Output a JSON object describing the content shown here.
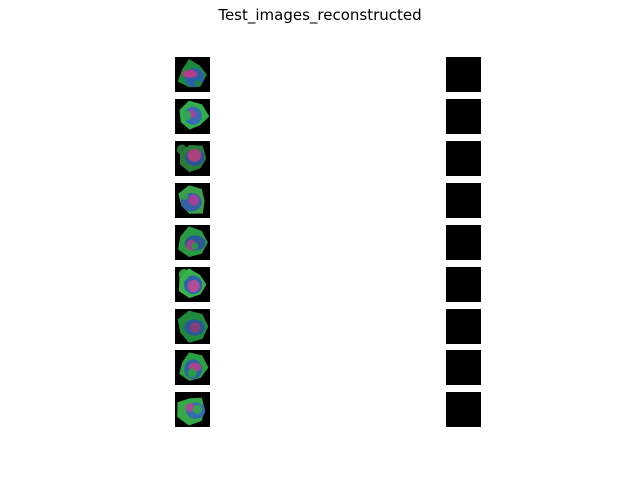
{
  "figure": {
    "title": "Test_images_reconstructed",
    "rows": 9,
    "left_column": {
      "kind": "original cell images",
      "tiles": [
        {
          "palette": [
            "#1a8a3a",
            "#c23a8a",
            "#2c5ab8"
          ]
        },
        {
          "palette": [
            "#2fae4a",
            "#b0409a",
            "#3a5fc8"
          ]
        },
        {
          "palette": [
            "#2a7a3a",
            "#b8407a",
            "#2b4aa8"
          ]
        },
        {
          "palette": [
            "#3aa04a",
            "#a83e98",
            "#3356b4"
          ]
        },
        {
          "palette": [
            "#2a9a44",
            "#a83f88",
            "#2e4fa2"
          ]
        },
        {
          "palette": [
            "#38b24a",
            "#c14996",
            "#2f56b8"
          ]
        },
        {
          "palette": [
            "#1f8a3c",
            "#923c78",
            "#2b4fa8"
          ]
        },
        {
          "palette": [
            "#2aa042",
            "#b63e8c",
            "#2d58b6"
          ]
        },
        {
          "palette": [
            "#35a84a",
            "#b24a94",
            "#3361c0"
          ]
        }
      ]
    },
    "right_column": {
      "kind": "reconstructed images",
      "fill": "#000000",
      "count": 9
    }
  }
}
